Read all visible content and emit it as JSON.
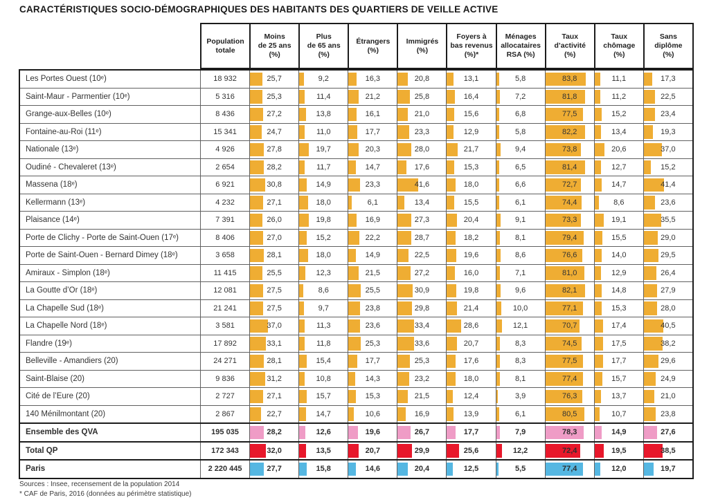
{
  "title": "CARACTÉRISTIQUES SOCIO-DÉMOGRAPHIQUES DES HABITANTS DES QUARTIERS DE VEILLE ACTIVE",
  "chart_data": {
    "type": "table",
    "title": "CARACTÉRISTIQUES SOCIO-DÉMOGRAPHIQUES DES HABITANTS DES QUARTIERS DE VEILLE ACTIVE",
    "bar_scale": {
      "min": 0,
      "max": 100,
      "note": "inline bar width = percentage value of cell width"
    },
    "colors": {
      "orange": "#EFAD33",
      "pink": "#EF9CC6",
      "red": "#E8182B",
      "blue": "#55B7E2"
    },
    "headers": [
      "Population\ntotale",
      "Moins\nde 25 ans\n(%)",
      "Plus\nde 65 ans\n(%)",
      "Étrangers\n(%)",
      "Immigrés\n(%)",
      "Foyers à\nbas revenus\n(%)*",
      "Ménages\nallocataires\nRSA (%)",
      "Taux\nd’activité\n(%)",
      "Taux\nchômage\n(%)",
      "Sans\ndiplôme\n(%)"
    ],
    "rows": [
      {
        "name": "Les Portes Ouest (10ᵉ)",
        "population": "18 932",
        "values": [
          "25,7",
          "9,2",
          "16,3",
          "20,8",
          "13,1",
          "5,8",
          "83,8",
          "11,1",
          "17,3"
        ],
        "color": "orange",
        "bold": false
      },
      {
        "name": "Saint-Maur - Parmentier (10ᵉ)",
        "population": "5 316",
        "values": [
          "25,3",
          "11,4",
          "21,2",
          "25,8",
          "16,4",
          "7,2",
          "81,8",
          "11,2",
          "22,5"
        ],
        "color": "orange",
        "bold": false
      },
      {
        "name": "Grange-aux-Belles (10ᵉ)",
        "population": "8 436",
        "values": [
          "27,2",
          "13,8",
          "16,1",
          "21,0",
          "15,6",
          "6,8",
          "77,5",
          "15,2",
          "23,4"
        ],
        "color": "orange",
        "bold": false
      },
      {
        "name": "Fontaine-au-Roi (11ᵉ)",
        "population": "15 341",
        "values": [
          "24,7",
          "11,0",
          "17,7",
          "23,3",
          "12,9",
          "5,8",
          "82,2",
          "13,4",
          "19,3"
        ],
        "color": "orange",
        "bold": false
      },
      {
        "name": "Nationale (13ᵉ)",
        "population": "4 926",
        "values": [
          "27,8",
          "19,7",
          "20,3",
          "28,0",
          "21,7",
          "9,4",
          "73,8",
          "20,6",
          "37,0"
        ],
        "color": "orange",
        "bold": false
      },
      {
        "name": "Oudiné - Chevaleret (13ᵉ)",
        "population": "2 654",
        "values": [
          "28,2",
          "11,7",
          "14,7",
          "17,6",
          "15,3",
          "6,5",
          "81,4",
          "12,7",
          "15,2"
        ],
        "color": "orange",
        "bold": false
      },
      {
        "name": "Massena (18ᵉ)",
        "population": "6 921",
        "values": [
          "30,8",
          "14,9",
          "23,3",
          "41,6",
          "18,0",
          "6,6",
          "72,7",
          "14,7",
          "41,4"
        ],
        "color": "orange",
        "bold": false
      },
      {
        "name": "Kellermann (13ᵉ)",
        "population": "4 232",
        "values": [
          "27,1",
          "18,0",
          "6,1",
          "13,4",
          "15,5",
          "6,1",
          "74,4",
          "8,6",
          "23,6"
        ],
        "color": "orange",
        "bold": false
      },
      {
        "name": "Plaisance (14ᵉ)",
        "population": "7 391",
        "values": [
          "26,0",
          "19,8",
          "16,9",
          "27,3",
          "20,4",
          "9,1",
          "73,3",
          "19,1",
          "35,5"
        ],
        "color": "orange",
        "bold": false
      },
      {
        "name": "Porte de Clichy - Porte de Saint-Ouen (17ᵉ)",
        "population": "8 406",
        "values": [
          "27,0",
          "15,2",
          "22,2",
          "28,7",
          "18,2",
          "8,1",
          "79,4",
          "15,5",
          "29,0"
        ],
        "color": "orange",
        "bold": false
      },
      {
        "name": "Porte de Saint-Ouen - Bernard Dimey (18ᵉ)",
        "population": "3 658",
        "values": [
          "28,1",
          "18,0",
          "14,9",
          "22,5",
          "19,6",
          "8,6",
          "76,6",
          "14,0",
          "29,5"
        ],
        "color": "orange",
        "bold": false
      },
      {
        "name": "Amiraux - Simplon (18ᵉ)",
        "population": "11 415",
        "values": [
          "25,5",
          "12,3",
          "21,5",
          "27,2",
          "16,0",
          "7,1",
          "81,0",
          "12,9",
          "26,4"
        ],
        "color": "orange",
        "bold": false
      },
      {
        "name": "La Goutte d’Or (18ᵉ)",
        "population": "12 081",
        "values": [
          "27,5",
          "8,6",
          "25,5",
          "30,9",
          "19,8",
          "9,6",
          "82,1",
          "14,8",
          "27,9"
        ],
        "color": "orange",
        "bold": false
      },
      {
        "name": "La Chapelle Sud (18ᵉ)",
        "population": "21 241",
        "values": [
          "27,5",
          "9,7",
          "23,8",
          "29,8",
          "21,4",
          "10,0",
          "77,1",
          "15,3",
          "28,0"
        ],
        "color": "orange",
        "bold": false
      },
      {
        "name": "La Chapelle Nord (18ᵉ)",
        "population": "3 581",
        "values": [
          "37,0",
          "11,3",
          "23,6",
          "33,4",
          "28,6",
          "12,1",
          "70,7",
          "17,4",
          "40,5"
        ],
        "color": "orange",
        "bold": false
      },
      {
        "name": "Flandre (19ᵉ)",
        "population": "17 892",
        "values": [
          "33,1",
          "11,8",
          "25,3",
          "33,6",
          "20,7",
          "8,3",
          "74,5",
          "17,5",
          "38,2"
        ],
        "color": "orange",
        "bold": false
      },
      {
        "name": "Belleville - Amandiers (20)",
        "population": "24 271",
        "values": [
          "28,1",
          "15,4",
          "17,7",
          "25,3",
          "17,6",
          "8,3",
          "77,5",
          "17,7",
          "29,6"
        ],
        "color": "orange",
        "bold": false
      },
      {
        "name": "Saint-Blaise (20)",
        "population": "9 836",
        "values": [
          "31,2",
          "10,8",
          "14,3",
          "23,2",
          "18,0",
          "8,1",
          "77,4",
          "15,7",
          "24,9"
        ],
        "color": "orange",
        "bold": false
      },
      {
        "name": "Cité de l’Eure (20)",
        "population": "2 727",
        "values": [
          "27,1",
          "15,7",
          "15,3",
          "21,5",
          "12,4",
          "3,9",
          "76,3",
          "13,7",
          "21,0"
        ],
        "color": "orange",
        "bold": false
      },
      {
        "name": "140 Ménilmontant (20)",
        "population": "2 867",
        "values": [
          "22,7",
          "14,7",
          "10,6",
          "16,9",
          "13,9",
          "6,1",
          "80,5",
          "10,7",
          "23,8"
        ],
        "color": "orange",
        "bold": false
      },
      {
        "name": "Ensemble des QVA",
        "population": "195 035",
        "values": [
          "28,2",
          "12,6",
          "19,6",
          "26,7",
          "17,7",
          "7,9",
          "78,3",
          "14,9",
          "27,6"
        ],
        "color": "pink",
        "bold": true
      },
      {
        "name": "Total QP",
        "population": "172 343",
        "values": [
          "32,0",
          "13,5",
          "20,7",
          "29,9",
          "25,6",
          "12,2",
          "72,4",
          "19,5",
          "38,5"
        ],
        "color": "red",
        "bold": true
      },
      {
        "name": "Paris",
        "population": "2 220 445",
        "values": [
          "27,7",
          "15,8",
          "14,6",
          "20,4",
          "12,5",
          "5,5",
          "77,4",
          "12,0",
          "19,7"
        ],
        "color": "blue",
        "bold": true
      }
    ],
    "footnotes": [
      "Sources : Insee, recensement de la population 2014",
      "* CAF de Paris, 2016 (données au périmètre statistique)"
    ]
  }
}
